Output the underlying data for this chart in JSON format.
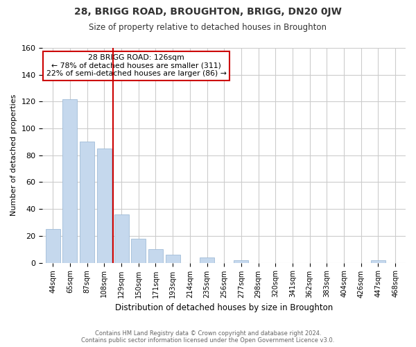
{
  "title": "28, BRIGG ROAD, BROUGHTON, BRIGG, DN20 0JW",
  "subtitle": "Size of property relative to detached houses in Broughton",
  "xlabel": "Distribution of detached houses by size in Broughton",
  "ylabel": "Number of detached properties",
  "bar_labels": [
    "44sqm",
    "65sqm",
    "87sqm",
    "108sqm",
    "129sqm",
    "150sqm",
    "171sqm",
    "193sqm",
    "214sqm",
    "235sqm",
    "256sqm",
    "277sqm",
    "298sqm",
    "320sqm",
    "341sqm",
    "362sqm",
    "383sqm",
    "404sqm",
    "426sqm",
    "447sqm",
    "468sqm"
  ],
  "bar_values": [
    25,
    122,
    90,
    85,
    36,
    18,
    10,
    6,
    0,
    4,
    0,
    2,
    0,
    0,
    0,
    0,
    0,
    0,
    0,
    2,
    0
  ],
  "bar_color": "#c5d8ed",
  "bar_edge_color": "#a0bcd8",
  "vline_color": "#cc0000",
  "vline_bar_index": 3,
  "ylim": [
    0,
    160
  ],
  "yticks": [
    0,
    20,
    40,
    60,
    80,
    100,
    120,
    140,
    160
  ],
  "annotation_title": "28 BRIGG ROAD: 126sqm",
  "annotation_line1": "← 78% of detached houses are smaller (311)",
  "annotation_line2": "22% of semi-detached houses are larger (86) →",
  "annotation_box_color": "#ffffff",
  "annotation_box_edge": "#cc0000",
  "footer_line1": "Contains HM Land Registry data © Crown copyright and database right 2024.",
  "footer_line2": "Contains public sector information licensed under the Open Government Licence v3.0.",
  "background_color": "#ffffff",
  "grid_color": "#cccccc"
}
